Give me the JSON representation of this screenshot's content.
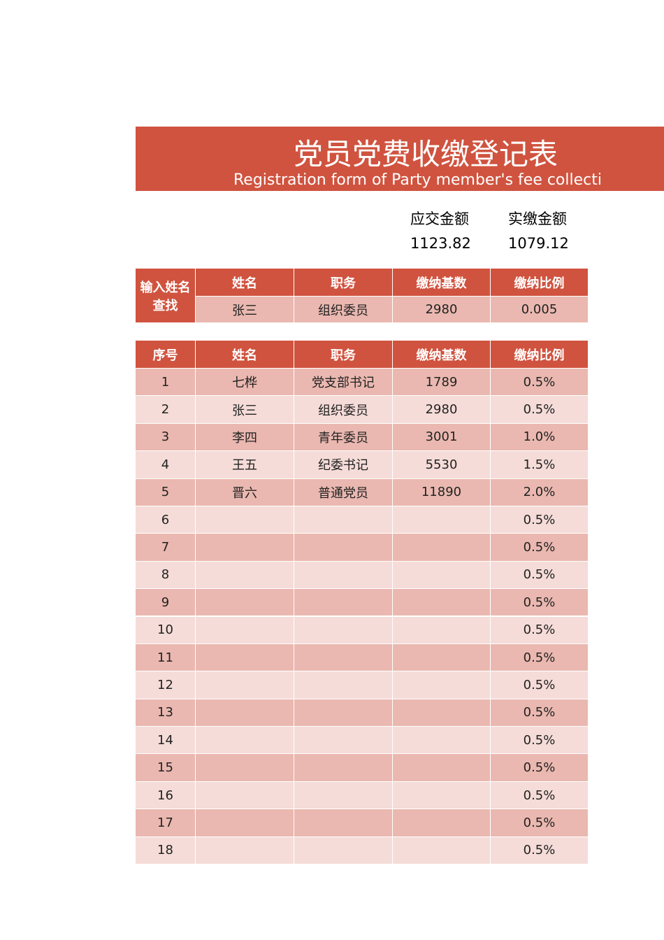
{
  "header": {
    "title": "党员党费收缴登记表",
    "subtitle": "Registration form of Party member's fee collecti"
  },
  "summary": {
    "labels": [
      "应交金额",
      "实缴金额"
    ],
    "values": [
      1123.82,
      1079.12
    ]
  },
  "lookup": {
    "label": "输入姓名查找",
    "columns": [
      "姓名",
      "职务",
      "缴纳基数",
      "缴纳比例"
    ],
    "row": [
      "张三",
      "组织委员",
      2980,
      0.005
    ]
  },
  "table": {
    "columns": [
      "序号",
      "姓名",
      "职务",
      "缴纳基数",
      "缴纳比例"
    ],
    "rows": [
      [
        1,
        "七桦",
        "党支部书记",
        1789,
        "0.5%"
      ],
      [
        2,
        "张三",
        "组织委员",
        2980,
        "0.5%"
      ],
      [
        3,
        "李四",
        "青年委员",
        3001,
        "1.0%"
      ],
      [
        4,
        "王五",
        "纪委书记",
        5530,
        "1.5%"
      ],
      [
        5,
        "晋六",
        "普通党员",
        11890,
        "2.0%"
      ],
      [
        6,
        null,
        null,
        null,
        "0.5%"
      ],
      [
        7,
        null,
        null,
        null,
        "0.5%"
      ],
      [
        8,
        null,
        null,
        null,
        "0.5%"
      ],
      [
        9,
        null,
        null,
        null,
        "0.5%"
      ],
      [
        10,
        null,
        null,
        null,
        "0.5%"
      ],
      [
        11,
        null,
        null,
        null,
        "0.5%"
      ],
      [
        12,
        null,
        null,
        null,
        "0.5%"
      ],
      [
        13,
        null,
        null,
        null,
        "0.5%"
      ],
      [
        14,
        null,
        null,
        null,
        "0.5%"
      ],
      [
        15,
        null,
        null,
        null,
        "0.5%"
      ],
      [
        16,
        null,
        null,
        null,
        "0.5%"
      ],
      [
        17,
        null,
        null,
        null,
        "0.5%"
      ],
      [
        18,
        null,
        null,
        null,
        "0.5%"
      ]
    ]
  }
}
